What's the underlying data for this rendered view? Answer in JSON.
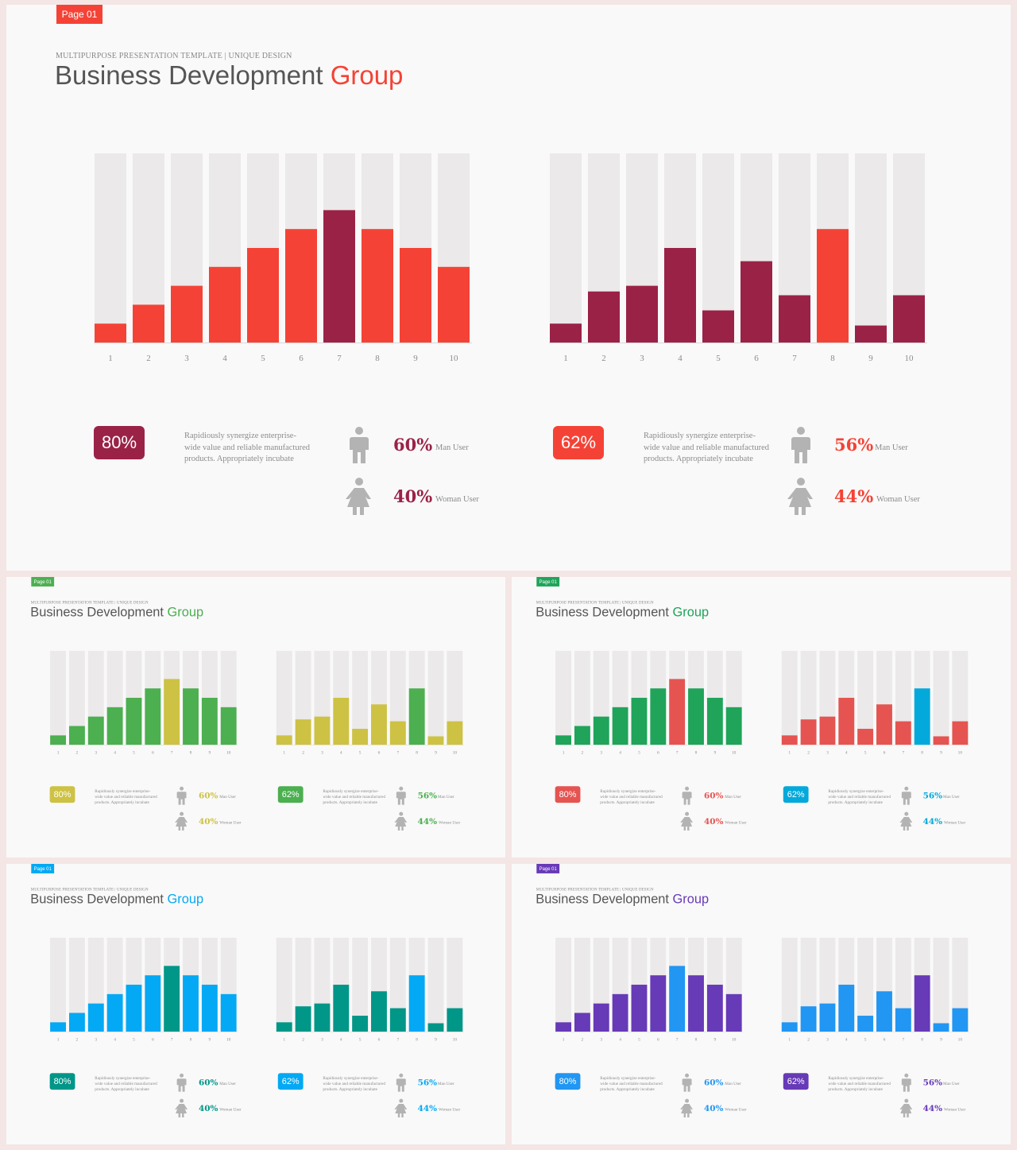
{
  "slides": [
    {
      "page_tag": "Page 01",
      "subtitle": "MULTIPURPOSE PRESENTATION TEMPLATE | UNIQUE DESIGN",
      "title_main": "Business Development",
      "title_accent": "Group",
      "colors": {
        "tag": "#f44336",
        "accent": "#f44336",
        "left_bar": "#f44336",
        "left_hi": "#9b2247",
        "right_bar": "#9b2247",
        "right_hi": "#f44336",
        "left_badge": "#9b2247",
        "right_badge": "#f44336",
        "left_pct": "#9b2247",
        "right_pct": "#f44336"
      },
      "left_stats": {
        "badge": "80%",
        "desc": "Rapidiously synergize enterprise-wide value and reliable manufactured products. Appropriately incubate",
        "man_pct": "60%",
        "man_label": "Man User",
        "woman_pct": "40%",
        "woman_label": "Woman User"
      },
      "right_stats": {
        "badge": "62%",
        "desc": "Rapidiously synergize enterprise-wide value and reliable manufactured products. Appropriately incubate",
        "man_pct": "56%",
        "man_label": "Man User",
        "woman_pct": "44%",
        "woman_label": "Woman User"
      }
    },
    {
      "page_tag": "Page 01",
      "subtitle": "MULTIPURPOSE PRESENTATION TEMPLATE | UNIQUE DESIGN",
      "title_main": "Business Development",
      "title_accent": "Group",
      "colors": {
        "tag": "#4caf50",
        "accent": "#4caf50",
        "left_bar": "#4caf50",
        "left_hi": "#cdc244",
        "right_bar": "#cdc244",
        "right_hi": "#4caf50",
        "left_badge": "#cdc244",
        "right_badge": "#4caf50",
        "left_pct": "#cdc244",
        "right_pct": "#4caf50"
      },
      "left_stats": {
        "badge": "80%",
        "desc": "Rapidiously synergize enterprise-wide value and reliable manufactured products. Appropriately incubate",
        "man_pct": "60%",
        "man_label": "Man User",
        "woman_pct": "40%",
        "woman_label": "Woman User"
      },
      "right_stats": {
        "badge": "62%",
        "desc": "Rapidiously synergize enterprise-wide value and reliable manufactured products. Appropriately incubate",
        "man_pct": "56%",
        "man_label": "Man User",
        "woman_pct": "44%",
        "woman_label": "Woman User"
      }
    },
    {
      "page_tag": "Page 01",
      "subtitle": "MULTIPURPOSE PRESENTATION TEMPLATE | UNIQUE DESIGN",
      "title_main": "Business Development",
      "title_accent": "Group",
      "colors": {
        "tag": "#1fa45a",
        "accent": "#1fa45a",
        "left_bar": "#1fa45a",
        "left_hi": "#e55451",
        "right_bar": "#e55451",
        "right_hi": "#03a9db",
        "left_badge": "#e55451",
        "right_badge": "#03a9db",
        "left_pct": "#e55451",
        "right_pct": "#03a9db"
      },
      "left_stats": {
        "badge": "80%",
        "desc": "Rapidiously synergize enterprise-wide value and reliable manufactured products. Appropriately incubate",
        "man_pct": "60%",
        "man_label": "Man User",
        "woman_pct": "40%",
        "woman_label": "Woman User"
      },
      "right_stats": {
        "badge": "62%",
        "desc": "Rapidiously synergize enterprise-wide value and reliable manufactured products. Appropriately incubate",
        "man_pct": "56%",
        "man_label": "Man User",
        "woman_pct": "44%",
        "woman_label": "Woman User"
      }
    },
    {
      "page_tag": "Page 01",
      "subtitle": "MULTIPURPOSE PRESENTATION TEMPLATE | UNIQUE DESIGN",
      "title_main": "Business Development",
      "title_accent": "Group",
      "colors": {
        "tag": "#03a9f4",
        "accent": "#03a9f4",
        "left_bar": "#03a9f4",
        "left_hi": "#009688",
        "right_bar": "#009688",
        "right_hi": "#03a9f4",
        "left_badge": "#009688",
        "right_badge": "#03a9f4",
        "left_pct": "#009688",
        "right_pct": "#03a9f4"
      },
      "left_stats": {
        "badge": "80%",
        "desc": "Rapidiously synergize enterprise-wide value and reliable manufactured products. Appropriately incubate",
        "man_pct": "60%",
        "man_label": "Man User",
        "woman_pct": "40%",
        "woman_label": "Woman User"
      },
      "right_stats": {
        "badge": "62%",
        "desc": "Rapidiously synergize enterprise-wide value and reliable manufactured products. Appropriately incubate",
        "man_pct": "56%",
        "man_label": "Man User",
        "woman_pct": "44%",
        "woman_label": "Woman User"
      }
    },
    {
      "page_tag": "Page 01",
      "subtitle": "MULTIPURPOSE PRESENTATION TEMPLATE | UNIQUE DESIGN",
      "title_main": "Business Development",
      "title_accent": "Group",
      "colors": {
        "tag": "#673ab7",
        "accent": "#673ab7",
        "left_bar": "#673ab7",
        "left_hi": "#2196f3",
        "right_bar": "#2196f3",
        "right_hi": "#673ab7",
        "left_badge": "#2196f3",
        "right_badge": "#673ab7",
        "left_pct": "#2196f3",
        "right_pct": "#673ab7"
      },
      "left_stats": {
        "badge": "80%",
        "desc": "Rapidiously synergize enterprise-wide value and reliable manufactured products. Appropriately incubate",
        "man_pct": "60%",
        "man_label": "Man User",
        "woman_pct": "40%",
        "woman_label": "Woman User"
      },
      "right_stats": {
        "badge": "62%",
        "desc": "Rapidiously synergize enterprise-wide value and reliable manufactured products. Appropriately incubate",
        "man_pct": "56%",
        "man_label": "Man User",
        "woman_pct": "44%",
        "woman_label": "Woman User"
      }
    }
  ],
  "chart_data": [
    {
      "type": "bar",
      "categories": [
        "1",
        "2",
        "3",
        "4",
        "5",
        "6",
        "7",
        "8",
        "9",
        "10"
      ],
      "values": [
        1,
        2,
        3,
        4,
        5,
        6,
        7,
        6,
        5,
        4
      ],
      "highlight_index": 6,
      "ylim": [
        0,
        10
      ]
    },
    {
      "type": "bar",
      "categories": [
        "1",
        "2",
        "3",
        "4",
        "5",
        "6",
        "7",
        "8",
        "9",
        "10"
      ],
      "values": [
        1,
        2.7,
        3,
        5,
        1.7,
        4.3,
        2.5,
        6,
        0.9,
        2.5
      ],
      "highlight_index": 7,
      "ylim": [
        0,
        10
      ]
    }
  ]
}
